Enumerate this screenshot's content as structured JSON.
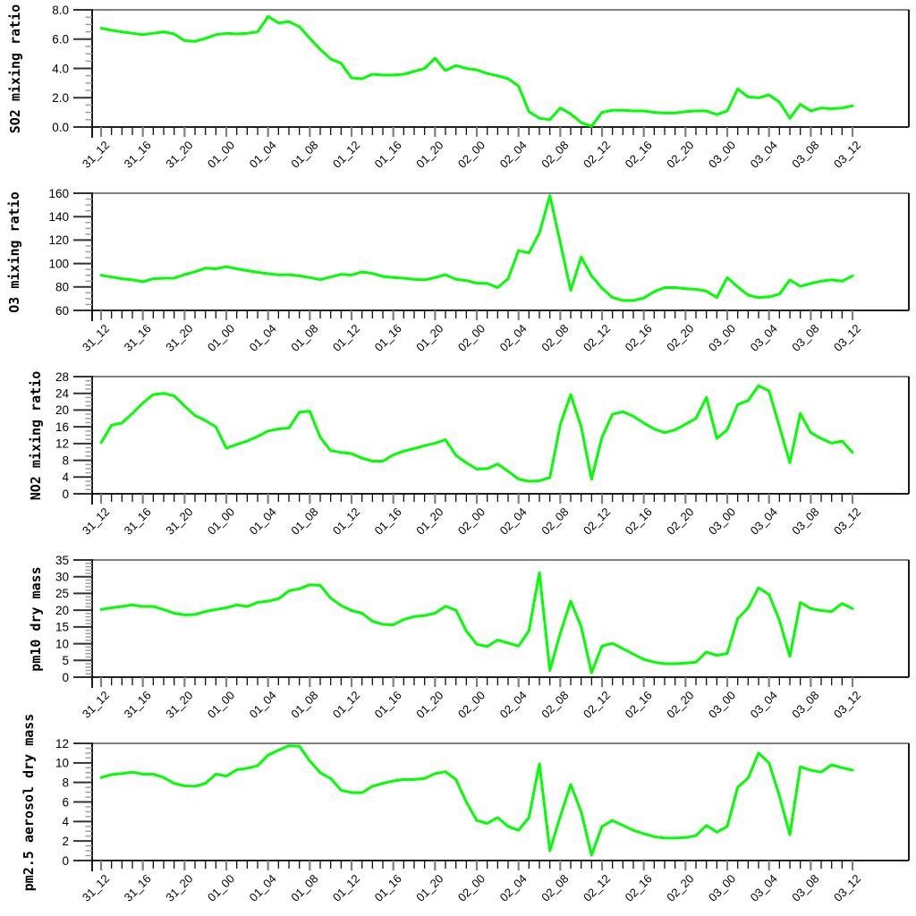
{
  "figure": {
    "background": "#ffffff",
    "line_color": "#00ff00",
    "frame_top_color": "#808080",
    "axis_color": "#000000"
  },
  "x_axis": {
    "tick_labels": [
      "31_12",
      "31_16",
      "31_20",
      "01_00",
      "01_04",
      "01_08",
      "01_12",
      "01_16",
      "01_20",
      "02_00",
      "02_04",
      "02_08",
      "02_12",
      "02_16",
      "02_20",
      "03_00",
      "03_04",
      "03_08",
      "03_12"
    ],
    "label_every_hours": 4,
    "minor_tick_every_hours": 1,
    "start": "31_12",
    "end": "03_12",
    "sampling": "hourly data points from 31_12 to 03_12 (73 points)"
  },
  "chart_data": [
    {
      "type": "line",
      "name": "so2",
      "ylabel": "SO2 mixing ratio",
      "ymin": 0,
      "ymax": 8,
      "y_tick_labels": [
        "0.0",
        "2.0",
        "4.0",
        "6.0",
        "8.0"
      ],
      "y_minor_step": 0.5,
      "grid": false,
      "values": [
        6.75,
        6.6,
        6.5,
        6.4,
        6.3,
        6.4,
        6.5,
        6.35,
        5.9,
        5.85,
        6.05,
        6.3,
        6.4,
        6.35,
        6.4,
        6.5,
        7.55,
        7.1,
        7.2,
        6.85,
        6.05,
        5.3,
        4.65,
        4.35,
        3.35,
        3.3,
        3.6,
        3.55,
        3.55,
        3.6,
        3.8,
        4.0,
        4.7,
        3.85,
        4.2,
        4.0,
        3.9,
        3.65,
        3.5,
        3.3,
        2.8,
        1.05,
        0.6,
        0.5,
        1.3,
        0.9,
        0.3,
        0.05,
        1.0,
        1.15,
        1.15,
        1.1,
        1.1,
        1.0,
        0.95,
        0.95,
        1.05,
        1.1,
        1.1,
        0.85,
        1.1,
        2.6,
        2.05,
        2.0,
        2.2,
        1.7,
        0.6,
        1.55,
        1.1,
        1.3,
        1.25,
        1.3,
        1.45
      ]
    },
    {
      "type": "line",
      "name": "o3",
      "ylabel": "O3 mixing ratio",
      "ymin": 60,
      "ymax": 160,
      "y_tick_labels": [
        "60",
        "80",
        "100",
        "120",
        "140",
        "160"
      ],
      "y_minor_step": 5,
      "grid": false,
      "values": [
        90,
        88.5,
        87,
        86,
        84.5,
        87,
        87.5,
        87.5,
        90.5,
        93,
        96,
        95.5,
        97.3,
        95.5,
        94,
        92.5,
        91.3,
        90.3,
        90.5,
        89.5,
        88,
        86.3,
        88.5,
        90.8,
        90.2,
        92.8,
        91.5,
        89,
        88,
        87.5,
        86.5,
        86,
        88,
        90.5,
        86.5,
        85.5,
        83.3,
        83,
        79.5,
        87,
        111,
        109,
        126,
        158,
        118,
        77,
        105.5,
        89.5,
        79,
        71,
        68.5,
        68.5,
        70.5,
        76,
        79.5,
        79.5,
        78.5,
        78,
        76.5,
        71,
        88,
        80,
        73,
        71,
        71.5,
        74,
        86,
        80.5,
        83,
        85,
        86,
        85,
        89.5
      ]
    },
    {
      "type": "line",
      "name": "no2",
      "ylabel": "NO2 mixing ratio",
      "ymin": 0,
      "ymax": 28,
      "y_tick_labels": [
        "0",
        "4",
        "8",
        "12",
        "16",
        "20",
        "24",
        "28"
      ],
      "y_minor_step": 1,
      "grid": false,
      "values": [
        12.2,
        16.4,
        16.9,
        19.2,
        21.7,
        23.7,
        24,
        23.4,
        21,
        18.7,
        17.5,
        16,
        10.9,
        11.8,
        12.6,
        13.7,
        15,
        15.5,
        15.7,
        19.5,
        19.7,
        13.5,
        10.3,
        9.9,
        9.6,
        8.5,
        7.8,
        7.8,
        9.3,
        10.2,
        10.8,
        11.5,
        12.1,
        12.9,
        9.2,
        7.4,
        5.9,
        6,
        7.1,
        5.4,
        3.5,
        3,
        3.1,
        3.9,
        16.5,
        23.7,
        16,
        3.5,
        13.5,
        19,
        19.6,
        18.5,
        16.9,
        15.5,
        14.6,
        15.3,
        16.6,
        18,
        23,
        13.2,
        15.3,
        21.3,
        22.3,
        25.8,
        24.6,
        16,
        7.4,
        19.2,
        14.6,
        13.2,
        12.1,
        12.6,
        9.9
      ]
    },
    {
      "type": "line",
      "name": "pm10",
      "ylabel": "pm10 dry mass",
      "ymin": 0,
      "ymax": 35,
      "y_tick_labels": [
        "0",
        "5",
        "10",
        "15",
        "20",
        "25",
        "30",
        "35"
      ],
      "y_minor_step": 1,
      "grid": false,
      "values": [
        20.2,
        20.7,
        21.1,
        21.6,
        21.1,
        21.1,
        20.2,
        19.1,
        18.6,
        18.7,
        19.6,
        20.2,
        20.7,
        21.6,
        21.1,
        22.3,
        22.7,
        23.4,
        25.8,
        26.4,
        27.6,
        27.4,
        23.6,
        21.4,
        19.9,
        19.1,
        16.7,
        15.8,
        15.6,
        17.2,
        18.1,
        18.4,
        19.1,
        21.2,
        20,
        13.8,
        9.8,
        9.2,
        11.1,
        10.2,
        9.3,
        13.8,
        31.2,
        2,
        13,
        22.7,
        15.1,
        1.3,
        9.3,
        10.1,
        8.5,
        6.9,
        5.3,
        4.5,
        4,
        4,
        4.2,
        4.5,
        7.5,
        6.5,
        7.1,
        17.5,
        20.7,
        26.7,
        24.7,
        16.9,
        6.2,
        22.3,
        20.5,
        19.9,
        19.6,
        22,
        20.5
      ]
    },
    {
      "type": "line",
      "name": "pm25",
      "ylabel": "pm2.5 aerosol dry mass",
      "ymin": 0,
      "ymax": 12,
      "y_tick_labels": [
        "0",
        "2",
        "4",
        "6",
        "8",
        "10",
        "12"
      ],
      "y_minor_step": 0.5,
      "grid": false,
      "values": [
        8.5,
        8.8,
        8.9,
        9.05,
        8.85,
        8.85,
        8.5,
        7.9,
        7.65,
        7.6,
        7.9,
        8.85,
        8.65,
        9.3,
        9.45,
        9.7,
        10.8,
        11.3,
        11.75,
        11.7,
        10.2,
        9,
        8.4,
        7.2,
        6.95,
        6.95,
        7.6,
        7.9,
        8.15,
        8.3,
        8.3,
        8.4,
        8.9,
        9.1,
        8.3,
        6,
        4.1,
        3.8,
        4.4,
        3.5,
        3.1,
        4.4,
        9.9,
        1,
        4.5,
        7.8,
        5,
        0.55,
        3.5,
        4.1,
        3.6,
        3.1,
        2.75,
        2.45,
        2.3,
        2.3,
        2.35,
        2.55,
        3.6,
        2.9,
        3.5,
        7.5,
        8.45,
        11,
        10,
        6.6,
        2.65,
        9.6,
        9.25,
        9.05,
        9.8,
        9.5,
        9.25
      ]
    }
  ]
}
